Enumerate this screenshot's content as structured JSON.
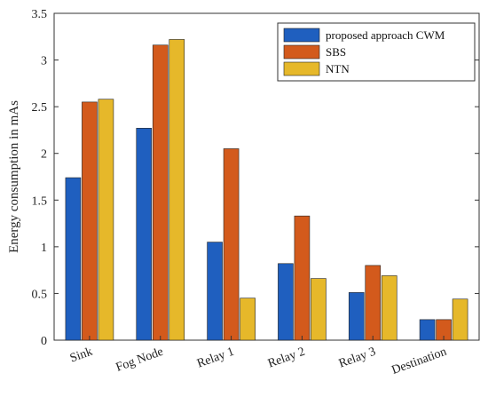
{
  "chart_data": {
    "type": "bar",
    "categories": [
      "Sink",
      "Fog Node",
      "Relay 1",
      "Relay 2",
      "Relay 3",
      "Destination"
    ],
    "series": [
      {
        "name": "proposed approach CWM",
        "color": "#1f5fbf",
        "values": [
          1.74,
          2.27,
          1.05,
          0.82,
          0.51,
          0.22
        ]
      },
      {
        "name": "SBS",
        "color": "#d35a1c",
        "values": [
          2.55,
          3.16,
          2.05,
          1.33,
          0.8,
          0.22
        ]
      },
      {
        "name": "NTN",
        "color": "#e6b82a",
        "values": [
          2.58,
          3.22,
          0.45,
          0.66,
          0.69,
          0.44
        ]
      }
    ],
    "title": "",
    "xlabel": "",
    "ylabel": "Energy consumption in mAs",
    "ylim": [
      0,
      3.5
    ],
    "yticks": [
      0,
      0.5,
      1,
      1.5,
      2,
      2.5,
      3,
      3.5
    ],
    "ytick_labels": [
      "0",
      "0.5",
      "1",
      "1.5",
      "2",
      "2.5",
      "3",
      "3.5"
    ],
    "grid": false,
    "legend_position": "top-right"
  }
}
